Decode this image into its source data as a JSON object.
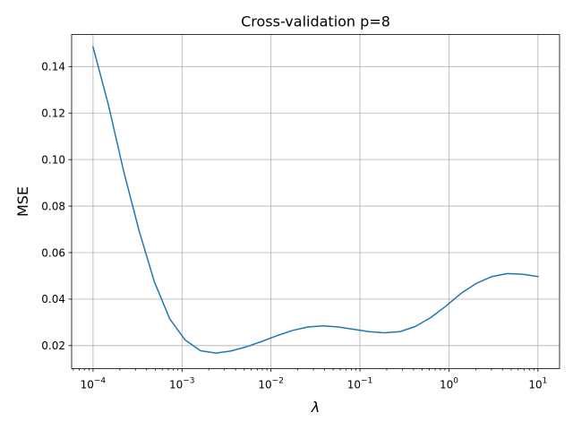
{
  "chart_data": {
    "type": "line",
    "title": "Cross-validation p=8",
    "xlabel": "λ",
    "ylabel": "MSE",
    "xscale": "log",
    "xlim": [
      5.75e-05,
      17.5
    ],
    "ylim": [
      0.0101,
      0.1538
    ],
    "grid": true,
    "xtick_values": [
      0.0001,
      0.001,
      0.01,
      0.1,
      1,
      10
    ],
    "xtick_labels": [
      {
        "base": "10",
        "exp": "−4"
      },
      {
        "base": "10",
        "exp": "−3"
      },
      {
        "base": "10",
        "exp": "−2"
      },
      {
        "base": "10",
        "exp": "−1"
      },
      {
        "base": "10",
        "exp": "0"
      },
      {
        "base": "10",
        "exp": "1"
      }
    ],
    "ytick_values": [
      0.02,
      0.04,
      0.06,
      0.08,
      0.1,
      0.12,
      0.14
    ],
    "ytick_labels": [
      "0.02",
      "0.04",
      "0.06",
      "0.08",
      "0.10",
      "0.12",
      "0.14"
    ],
    "line_color": "#1f77b4",
    "series": [
      {
        "x": [
          0.0001,
          0.000149,
          0.000221,
          0.000329,
          0.000489,
          0.000728,
          0.00108,
          0.00161,
          0.0024,
          0.00356,
          0.0053,
          0.00788,
          0.0117,
          0.0174,
          0.0259,
          0.0386,
          0.0574,
          0.0853,
          0.127,
          0.189,
          0.281,
          0.418,
          0.621,
          0.924,
          1.37,
          2.04,
          3.04,
          4.52,
          6.72,
          10
        ],
        "y": [
          0.1485,
          0.1235,
          0.095,
          0.0695,
          0.0475,
          0.0315,
          0.0225,
          0.0178,
          0.0168,
          0.0177,
          0.0195,
          0.0218,
          0.0243,
          0.0265,
          0.028,
          0.0285,
          0.028,
          0.027,
          0.026,
          0.0255,
          0.026,
          0.0282,
          0.032,
          0.037,
          0.0425,
          0.0468,
          0.0497,
          0.051,
          0.0507,
          0.0497
        ]
      }
    ]
  }
}
